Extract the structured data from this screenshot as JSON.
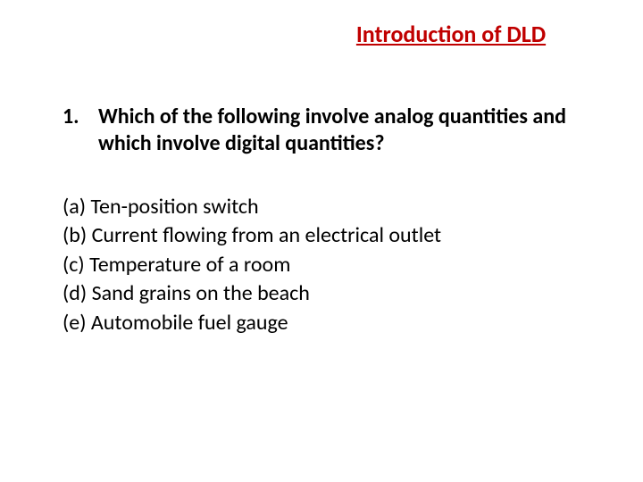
{
  "slide": {
    "title": "Introduction of DLD",
    "title_color": "#c00000",
    "title_fontsize": 26,
    "title_underline": true,
    "question": {
      "number": "1.",
      "text": "Which of the following involve analog quantities and which involve digital quantities?",
      "fontsize": 24,
      "fontweight": 700,
      "color": "#000000"
    },
    "options": [
      "(a) Ten-position switch",
      "(b) Current flowing from an electrical outlet",
      "(c) Temperature of a room",
      "(d) Sand grains on the beach",
      "(e) Automobile fuel gauge"
    ],
    "option_fontsize": 24,
    "option_color": "#000000",
    "background_color": "#ffffff"
  }
}
